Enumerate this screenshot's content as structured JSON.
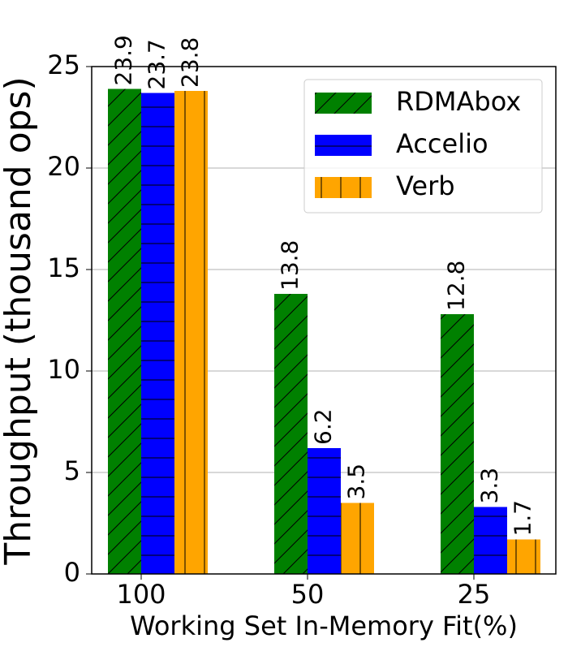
{
  "chart_data": {
    "type": "bar",
    "x_label": "Working Set In-Memory Fit(%)",
    "y_label": "Throughput (thousand ops)",
    "categories": [
      "100",
      "50",
      "25"
    ],
    "series": [
      {
        "name": "RDMAbox",
        "color": "#008000",
        "hatch": "/",
        "values": [
          23.9,
          13.8,
          12.8
        ]
      },
      {
        "name": "Accelio",
        "color": "#0000ff",
        "hatch": "-",
        "values": [
          23.7,
          6.2,
          3.3
        ]
      },
      {
        "name": "Verb",
        "color": "#ffa500",
        "hatch": "|",
        "values": [
          23.8,
          3.5,
          1.7
        ]
      }
    ],
    "ylim": [
      0,
      25
    ],
    "yticks": [
      0,
      5,
      10,
      15,
      20,
      25
    ],
    "grid": true,
    "legend": "upper right"
  }
}
